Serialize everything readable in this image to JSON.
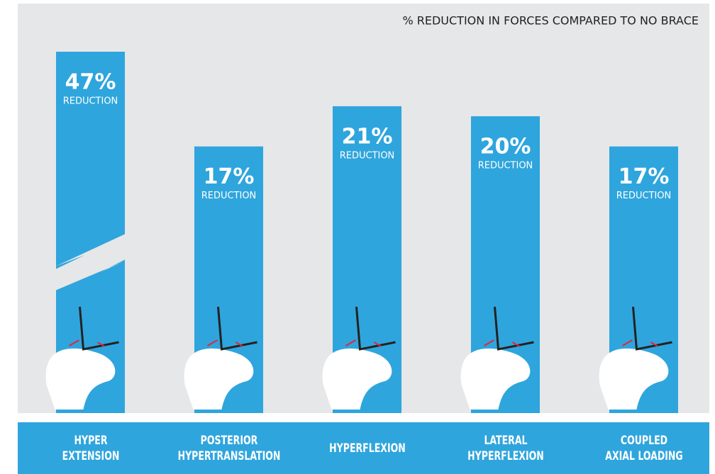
{
  "chart_data": {
    "type": "bar",
    "title": "% REDUCTION IN FORCES COMPARED TO NO BRACE",
    "categories": [
      "HYPER\nEXTENSION",
      "POSTERIOR\nHYPERTRANSLATION",
      "HYPERFLEXION",
      "LATERAL\nHYPERFLEXION",
      "COUPLED\nAXIAL LOADING"
    ],
    "values": [
      47,
      17,
      21,
      20,
      17
    ],
    "value_labels": [
      "47%",
      "17%",
      "21%",
      "20%",
      "17%"
    ],
    "label_note": "REDUCTION",
    "color": "#2fa5dd"
  }
}
